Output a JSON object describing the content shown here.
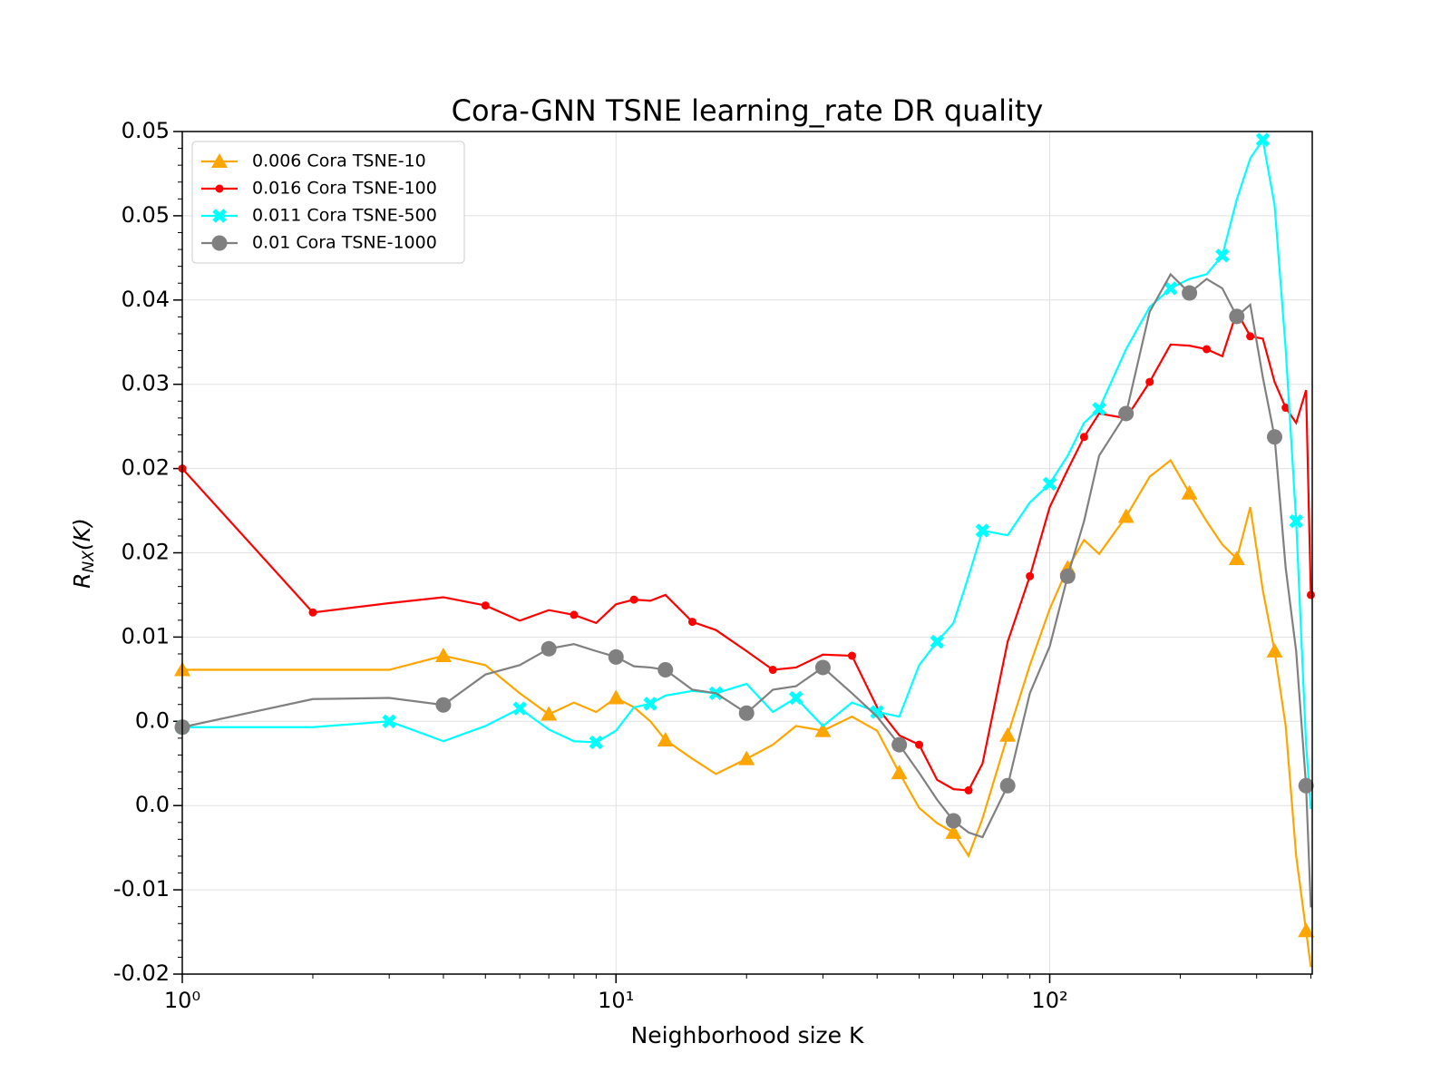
{
  "chart_data": {
    "type": "line",
    "title": "Cora-GNN TSNE learning_rate DR quality",
    "xlabel": "Neighborhood size K",
    "ylabel": {
      "main": "R",
      "sub": "NX",
      "arg": "(K)"
    },
    "xscale": "log",
    "grid": true,
    "legend": "upper-left",
    "xlim": [
      1,
      403
    ],
    "xticks": [
      {
        "value": 1,
        "label": "10⁰"
      },
      {
        "value": 10,
        "label": "10¹"
      },
      {
        "value": 100,
        "label": "10²"
      }
    ],
    "ylim": [
      -0.019,
      0.053
    ],
    "yticks": [
      {
        "value": -0.019,
        "label": "-0.02"
      },
      {
        "value": -0.0118,
        "label": "-0.01"
      },
      {
        "value": -0.0046,
        "label": "0.0"
      },
      {
        "value": 0.0026,
        "label": "0.0"
      },
      {
        "value": 0.0098,
        "label": "0.01"
      },
      {
        "value": 0.017,
        "label": "0.02"
      },
      {
        "value": 0.0242,
        "label": "0.02"
      },
      {
        "value": 0.0314,
        "label": "0.03"
      },
      {
        "value": 0.0386,
        "label": "0.04"
      },
      {
        "value": 0.0458,
        "label": "0.05"
      },
      {
        "value": 0.053,
        "label": "0.05"
      }
    ],
    "x": [
      1,
      2,
      3,
      4,
      5,
      6,
      7,
      8,
      9,
      10,
      11,
      12,
      13,
      15,
      17,
      20,
      23,
      26,
      30,
      35,
      40,
      45,
      50,
      55,
      60,
      65,
      70,
      80,
      90,
      100,
      110,
      120,
      130,
      150,
      170,
      190,
      210,
      230,
      250,
      270,
      290,
      310,
      330,
      350,
      370,
      390,
      400
    ],
    "series": [
      {
        "name": "0.006 Cora TSNE-10",
        "color": "orange",
        "marker": "triangle",
        "values": [
          0.007,
          0.007,
          0.007,
          0.0082,
          0.0074,
          0.005,
          0.0032,
          0.0042,
          0.0034,
          0.0046,
          0.0038,
          0.0026,
          0.001,
          -0.0006,
          -0.0019,
          -0.0006,
          0.0006,
          0.0022,
          0.0018,
          0.003,
          0.0018,
          -0.0018,
          -0.0048,
          -0.0061,
          -0.0069,
          -0.0089,
          -0.0057,
          0.0014,
          0.0074,
          0.0122,
          0.0157,
          0.0181,
          0.0169,
          0.0201,
          0.0235,
          0.0249,
          0.0221,
          0.0197,
          0.0177,
          0.0165,
          0.0209,
          0.0138,
          0.0086,
          0.0022,
          -0.0089,
          -0.0153,
          -0.0184
        ]
      },
      {
        "name": "0.016 Cora TSNE-100",
        "color": "red",
        "marker": "dot",
        "values": [
          0.0242,
          0.0119,
          0.0127,
          0.0132,
          0.0125,
          0.0112,
          0.0121,
          0.0117,
          0.011,
          0.0126,
          0.013,
          0.0129,
          0.0134,
          0.0111,
          0.0104,
          0.0086,
          0.007,
          0.0072,
          0.0083,
          0.0082,
          0.0038,
          0.0014,
          0.0006,
          -0.0024,
          -0.0032,
          -0.0033,
          -0.001,
          0.0094,
          0.015,
          0.0209,
          0.0241,
          0.0269,
          0.0289,
          0.0285,
          0.0316,
          0.0348,
          0.0347,
          0.0344,
          0.0338,
          0.0376,
          0.0355,
          0.0353,
          0.0316,
          0.0294,
          0.0281,
          0.0309,
          0.0134
        ]
      },
      {
        "name": "0.011 Cora TSNE-500",
        "color": "cyan",
        "marker": "x",
        "values": [
          0.0021,
          0.0021,
          0.0026,
          0.0009,
          0.0022,
          0.0037,
          0.0019,
          0.0009,
          0.0008,
          0.0018,
          0.0038,
          0.0041,
          0.0048,
          0.0052,
          0.005,
          0.0058,
          0.0034,
          0.0046,
          0.0022,
          0.0042,
          0.0034,
          0.003,
          0.0074,
          0.0094,
          0.011,
          0.015,
          0.0189,
          0.0185,
          0.0213,
          0.0229,
          0.0253,
          0.0281,
          0.0293,
          0.0344,
          0.038,
          0.0396,
          0.0404,
          0.0408,
          0.0424,
          0.0472,
          0.0507,
          0.0523,
          0.0467,
          0.0344,
          0.0197,
          0.0006,
          -0.0049
        ]
      },
      {
        "name": "0.01 Cora TSNE-1000",
        "color": "gray",
        "marker": "circle",
        "values": [
          0.0021,
          0.0045,
          0.0046,
          0.004,
          0.0066,
          0.0074,
          0.0088,
          0.0092,
          0.0086,
          0.0081,
          0.0073,
          0.0072,
          0.007,
          0.0053,
          0.005,
          0.0033,
          0.0053,
          0.0056,
          0.0072,
          0.005,
          0.003,
          0.0006,
          -0.0018,
          -0.0041,
          -0.0059,
          -0.0069,
          -0.0073,
          -0.0029,
          0.005,
          0.009,
          0.015,
          0.0197,
          0.0253,
          0.0289,
          0.0376,
          0.0408,
          0.0392,
          0.0404,
          0.0396,
          0.0372,
          0.0382,
          0.032,
          0.0269,
          0.0157,
          0.0086,
          -0.0029,
          -0.0133
        ]
      }
    ]
  }
}
